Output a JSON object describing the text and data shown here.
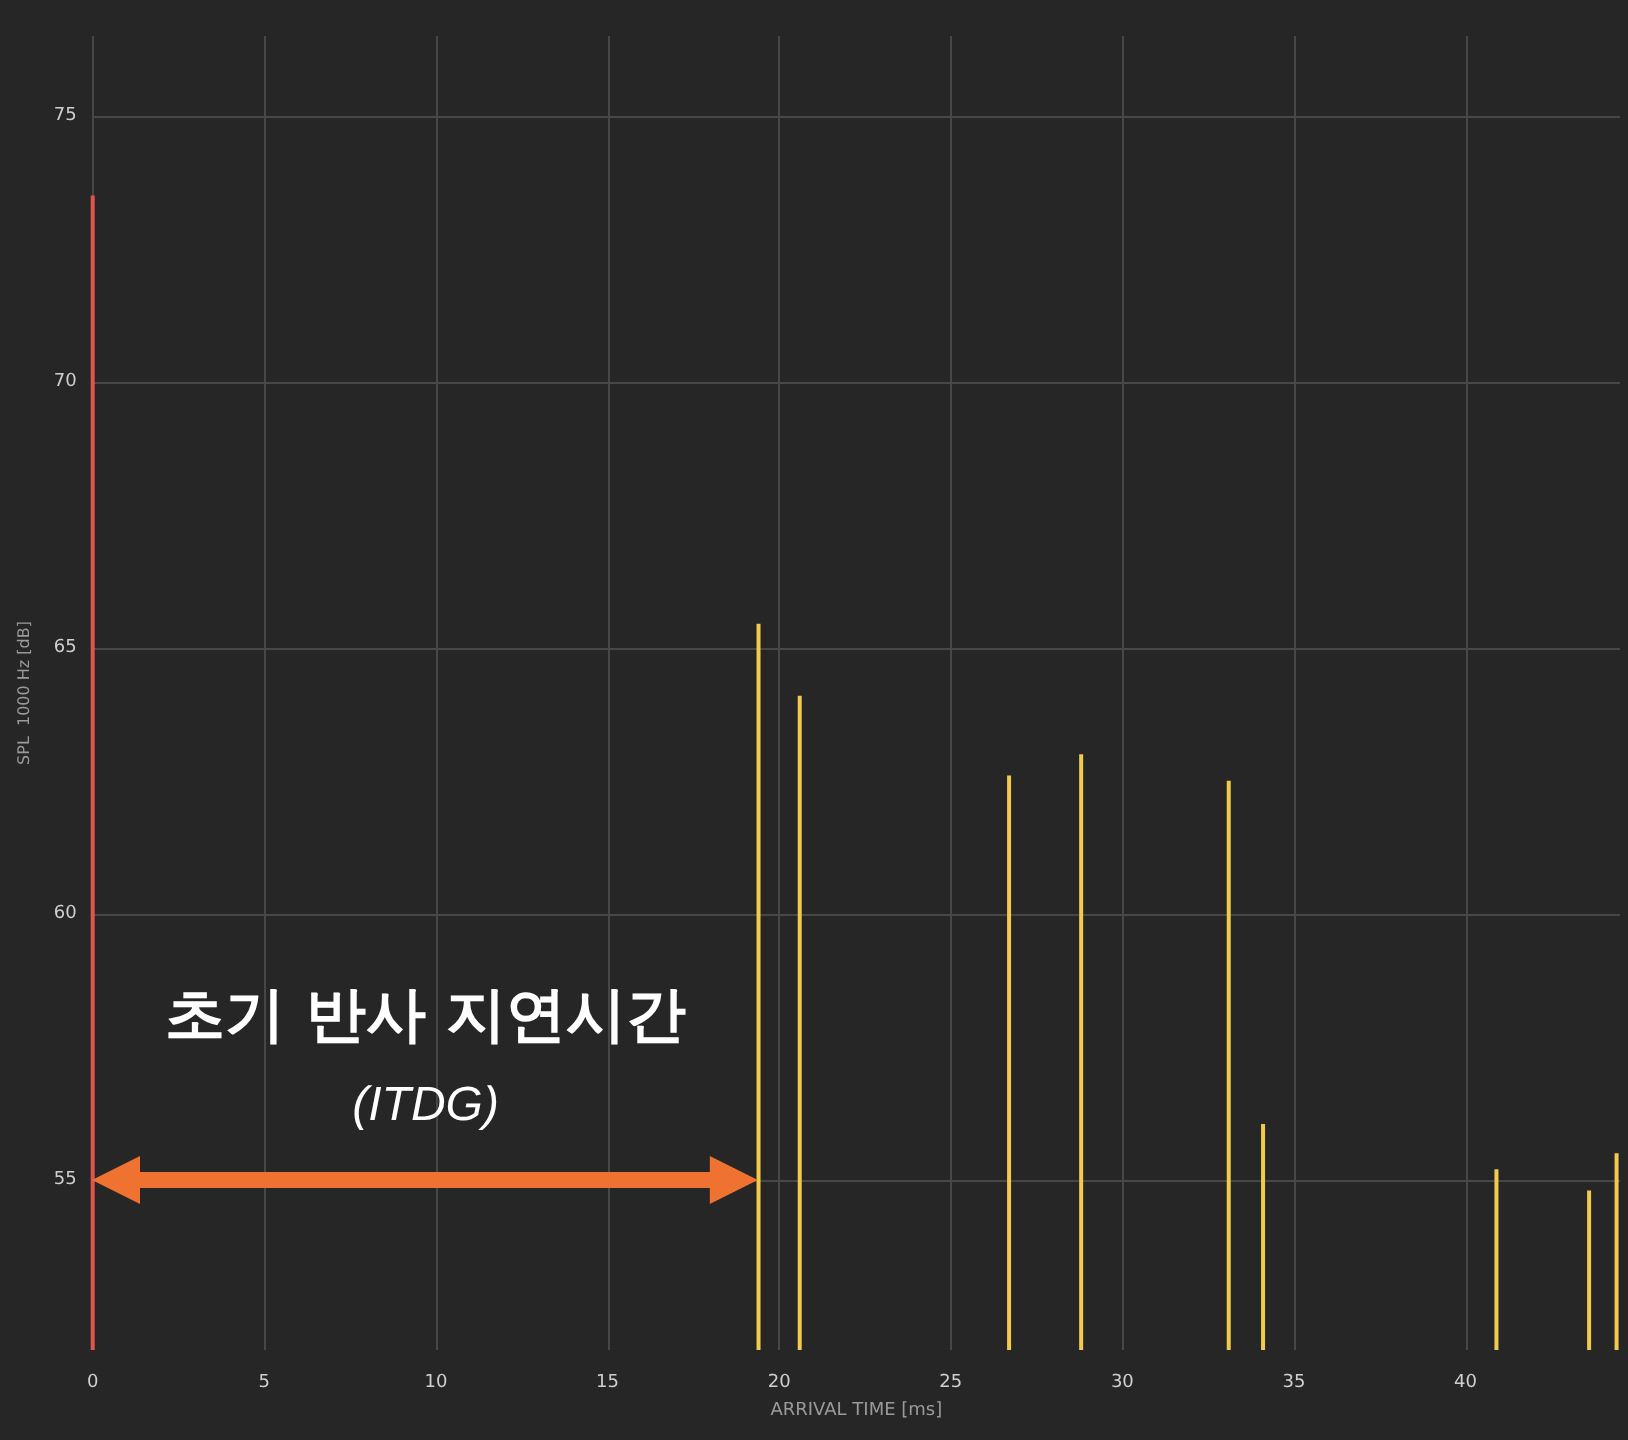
{
  "chart_data": {
    "type": "bar",
    "xlabel": "ARRIVAL TIME [ms]",
    "ylabel": "SPL  1000 Hz [dB]",
    "x": [
      0,
      19.4,
      20.6,
      26.7,
      28.8,
      33.1,
      34.1,
      40.9,
      43.6,
      44.4
    ],
    "values": [
      73.5,
      65.45,
      64.1,
      62.6,
      63.0,
      62.5,
      56.05,
      55.2,
      54.8,
      55.5
    ],
    "colors": [
      "#e0564c",
      "#f2cb4c",
      "#f2cb4c",
      "#f2cb4c",
      "#f2cb4c",
      "#f2cb4c",
      "#f2cb4c",
      "#f2cb4c",
      "#f2cb4c",
      "#f2cb4c"
    ],
    "xlim": [
      0,
      44.5
    ],
    "xticks": [
      0,
      5,
      10,
      15,
      20,
      25,
      30,
      35,
      40
    ],
    "ylim": [
      51.8,
      76.5
    ],
    "yticks": [
      55,
      60,
      65,
      70,
      75
    ],
    "grid": true,
    "annotations": [
      "초기 반사 지연시간",
      "(ITDG)"
    ]
  }
}
